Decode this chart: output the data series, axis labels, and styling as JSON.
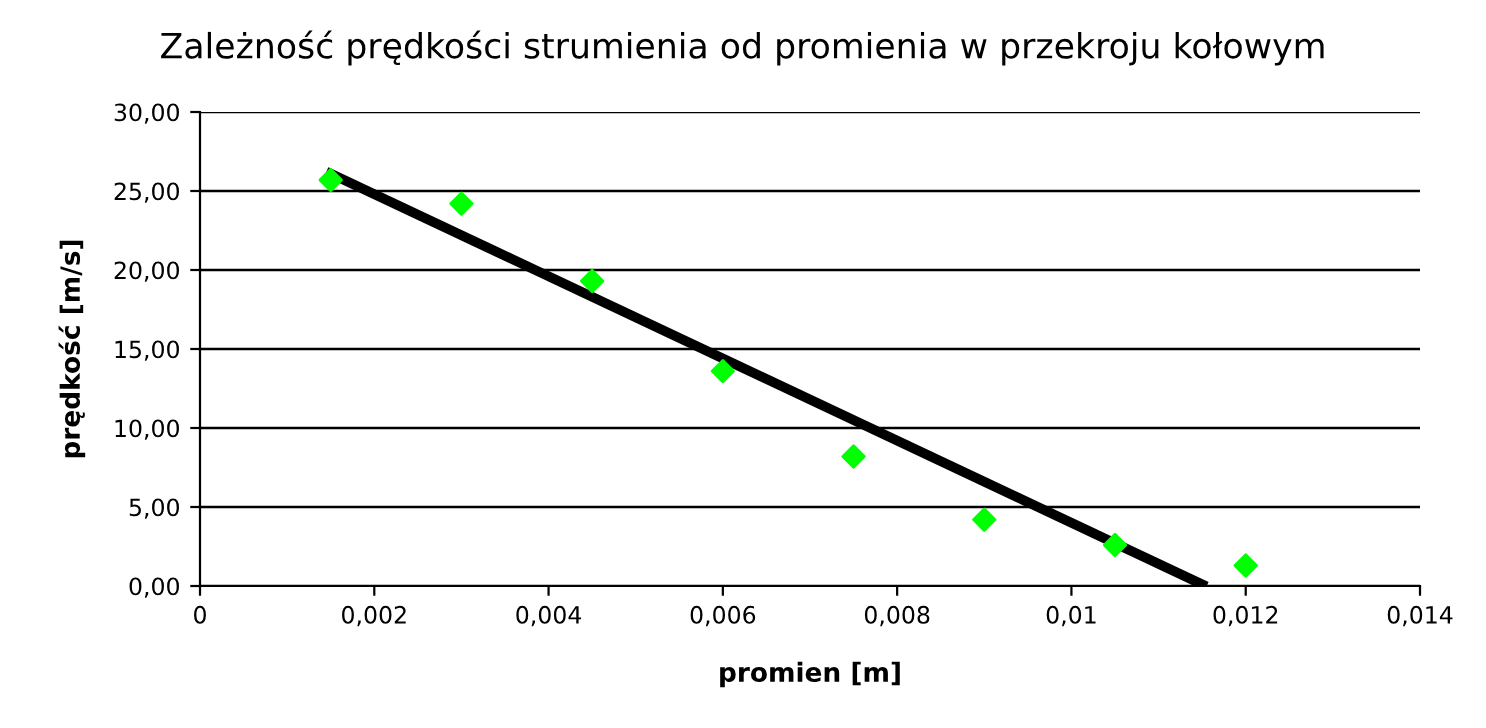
{
  "chart_data": {
    "type": "scatter",
    "title": "Zależność prędkości strumienia od promienia w przekroju kołowym",
    "xlabel": "promien [m]",
    "ylabel": "prędkość [m/s]",
    "x": [
      0.0015,
      0.003,
      0.0045,
      0.006,
      0.0075,
      0.009,
      0.0105,
      0.012
    ],
    "series": [
      {
        "color": "#00ff00",
        "values": [
          25.7,
          24.2,
          19.3,
          13.6,
          8.2,
          4.2,
          2.6,
          1.3
        ],
        "marker": "diamond"
      },
      {
        "type": "line",
        "color": "#000000",
        "x": [
          0.0015,
          0.0115
        ],
        "values": [
          26.1,
          0.1
        ],
        "marker": "none",
        "line_style": "solid"
      }
    ],
    "xlim": [
      0,
      0.014
    ],
    "ylim": [
      0,
      30
    ],
    "xticks": [
      0,
      {
        "value": 0.002,
        "label": "0,002"
      },
      {
        "value": 0.004,
        "label": "0,004"
      },
      {
        "value": 0.006,
        "label": "0,006"
      },
      {
        "value": 0.008,
        "label": "0,008"
      },
      {
        "value": 0.01,
        "label": "0,01"
      },
      {
        "value": 0.012,
        "label": "0,012"
      },
      {
        "value": 0.014,
        "label": "0,014"
      }
    ],
    "yticks": [
      {
        "value": 0,
        "label": "0,00"
      },
      {
        "value": 5,
        "label": "5,00"
      },
      {
        "value": 10,
        "label": "10,00"
      },
      {
        "value": 15,
        "label": "15,00"
      },
      {
        "value": 20,
        "label": "20,00"
      },
      {
        "value": 25,
        "label": "25,00"
      },
      {
        "value": 30,
        "label": "30,00"
      }
    ],
    "grid": "y",
    "legend": false
  }
}
